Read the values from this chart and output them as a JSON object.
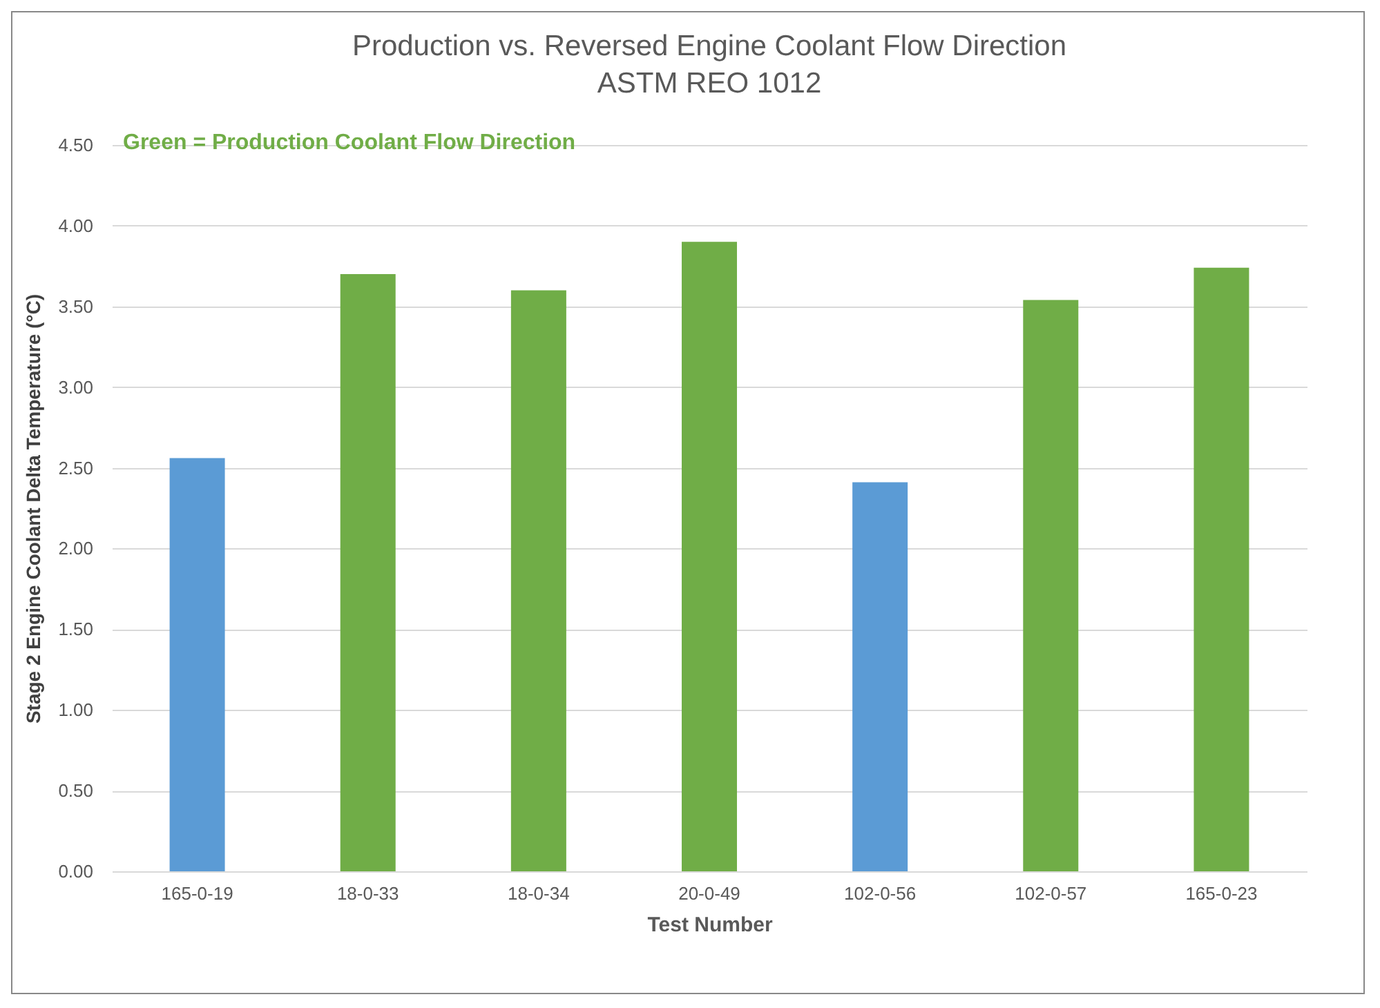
{
  "chart_data": {
    "type": "bar",
    "title": "Production vs. Reversed Engine Coolant Flow Direction",
    "subtitle": "ASTM REO 1012",
    "xlabel": "Test Number",
    "ylabel": "Stage 2 Engine Coolant Delta Temperature (°C)",
    "annotations": [
      "Green = Production Coolant Flow Direction"
    ],
    "categories": [
      "165-0-19",
      "18-0-33",
      "18-0-34",
      "20-0-49",
      "102-0-56",
      "102-0-57",
      "165-0-23"
    ],
    "values": [
      2.56,
      3.7,
      3.6,
      3.9,
      2.41,
      3.54,
      3.74
    ],
    "colors": [
      "#5b9bd5",
      "#70ad47",
      "#70ad47",
      "#70ad47",
      "#5b9bd5",
      "#70ad47",
      "#70ad47"
    ],
    "ylim": [
      0,
      4.5
    ],
    "yticks": [
      {
        "value": 0,
        "label": "0.00"
      },
      {
        "value": 0.5,
        "label": "0.50"
      },
      {
        "value": 1,
        "label": "1.00"
      },
      {
        "value": 1.5,
        "label": "1.50"
      },
      {
        "value": 2,
        "label": "2.00"
      },
      {
        "value": 2.5,
        "label": "2.50"
      },
      {
        "value": 3,
        "label": "3.00"
      },
      {
        "value": 3.5,
        "label": "3.50"
      },
      {
        "value": 4,
        "label": "4.00"
      },
      {
        "value": 4.5,
        "label": "4.50"
      }
    ],
    "grid": "y"
  }
}
